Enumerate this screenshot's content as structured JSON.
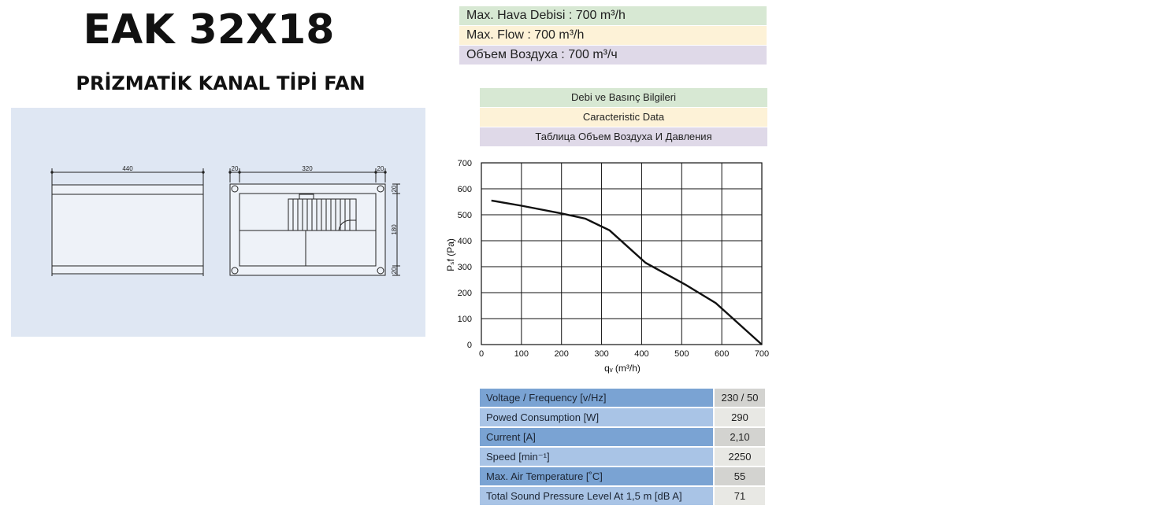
{
  "header": {
    "title": "EAK 32X18",
    "subtitle": "PRİZMATİK KANAL TİPİ FAN"
  },
  "drawing": {
    "dim_width": "440",
    "dim_left": "20",
    "dim_middle": "320",
    "dim_right": "20",
    "dim_top_side": "20",
    "dim_height": "180",
    "dim_bottom_side": "20"
  },
  "max_flow": {
    "tr": "Max. Hava Debisi : 700 m³/h",
    "en": "Max. Flow :  700 m³/h",
    "ru": "Объем Воздуха : 700 m³/ч"
  },
  "data_headers": {
    "tr": "Debi ve Basınç Bilgileri",
    "en": "Caracteristic Data",
    "ru": "Таблица Объем Воздуха И Давления"
  },
  "chart_data": {
    "type": "line",
    "xlabel": "qᵥ (m³/h)",
    "ylabel": "Pₛf (Pa)",
    "xlim": [
      0,
      700
    ],
    "ylim": [
      0,
      700
    ],
    "x_ticks": [
      "0",
      "100",
      "200",
      "300",
      "400",
      "500",
      "600",
      "700"
    ],
    "y_ticks": [
      "0",
      "100",
      "200",
      "300",
      "400",
      "500",
      "600",
      "700"
    ],
    "grid": true,
    "series": [
      {
        "x": [
          25,
          100,
          200,
          260,
          320,
          410,
          510,
          585,
          700
        ],
        "y": [
          555,
          535,
          505,
          485,
          440,
          315,
          230,
          160,
          0
        ]
      }
    ]
  },
  "specs": [
    {
      "label": "Voltage / Frequency [v/Hz]",
      "value": "230 / 50"
    },
    {
      "label": "Powed Consumption [W]",
      "value": "290"
    },
    {
      "label": "Current [A]",
      "value": "2,10"
    },
    {
      "label": "Speed [min⁻¹]",
      "value": "2250"
    },
    {
      "label": "Max. Air Temperature  [˚C]",
      "value": "55"
    },
    {
      "label": "Total Sound Pressure Level At 1,5 m [dB A]",
      "value": "71"
    }
  ],
  "colors": {
    "green": "#d7e8d3",
    "yellow": "#fdf2d7",
    "violet": "#dfd9e8",
    "spec_dark": "#7aa3d3",
    "spec_light": "#a9c4e6"
  }
}
